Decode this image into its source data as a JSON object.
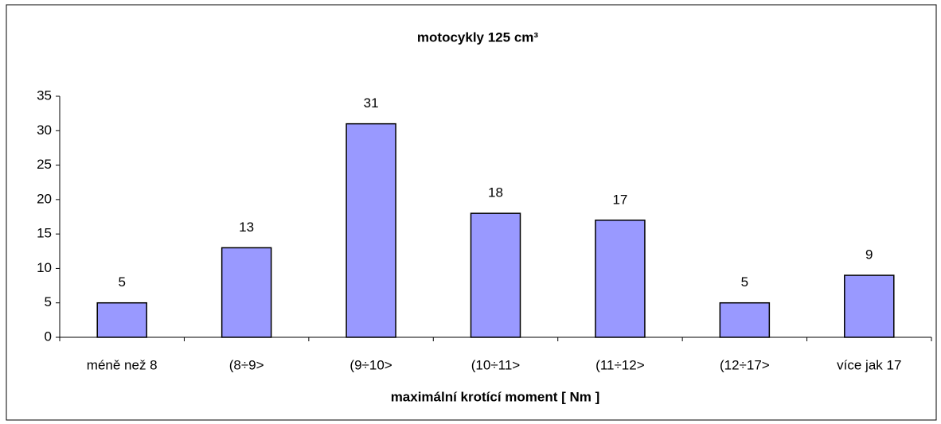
{
  "chart_data": {
    "type": "bar",
    "title": "motocykly 125 cm³",
    "x_label": "maximální krotící moment [ Nm ]",
    "categories": [
      "méně než 8",
      "(8÷9>",
      "(9÷10>",
      "(10÷11>",
      "(11÷12>",
      "(12÷17>",
      "více jak 17"
    ],
    "values": [
      5,
      13,
      31,
      18,
      17,
      5,
      9
    ],
    "color": "#9999ff",
    "ylim": [
      0,
      35
    ],
    "yticks": [
      0,
      5,
      10,
      15,
      20,
      25,
      30,
      35
    ],
    "grid": false
  }
}
